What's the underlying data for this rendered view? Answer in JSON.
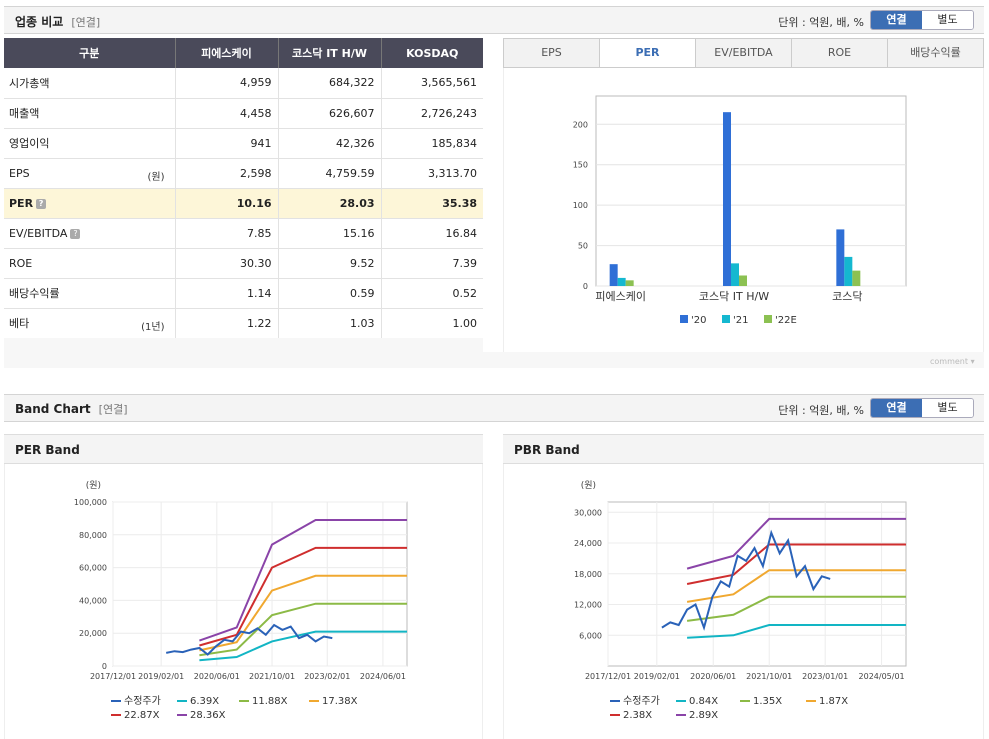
{
  "comparison": {
    "title": "업종 비교",
    "subtitle": "[연결]",
    "unit": "단위 : 억원, 배, %",
    "toggle": [
      "연결",
      "별도"
    ],
    "headers": [
      "구분",
      "피에스케이",
      "코스닥 IT H/W",
      "KOSDAQ"
    ],
    "rows": [
      {
        "label": "시가총액",
        "note": "",
        "values": [
          "4,959",
          "684,322",
          "3,565,561"
        ]
      },
      {
        "label": "매출액",
        "note": "",
        "values": [
          "4,458",
          "626,607",
          "2,726,243"
        ]
      },
      {
        "label": "영업이익",
        "note": "",
        "values": [
          "941",
          "42,326",
          "185,834"
        ]
      },
      {
        "label": "EPS",
        "note": "(원)",
        "values": [
          "2,598",
          "4,759.59",
          "3,313.70"
        ]
      },
      {
        "label": "PER",
        "note": "",
        "values": [
          "10.16",
          "28.03",
          "35.38"
        ]
      },
      {
        "label": "EV/EBITDA",
        "note": "",
        "values": [
          "7.85",
          "15.16",
          "16.84"
        ]
      },
      {
        "label": "ROE",
        "note": "",
        "values": [
          "30.30",
          "9.52",
          "7.39"
        ]
      },
      {
        "label": "배당수익률",
        "note": "",
        "values": [
          "1.14",
          "0.59",
          "0.52"
        ]
      },
      {
        "label": "베타",
        "note": "(1년)",
        "values": [
          "1.22",
          "1.03",
          "1.00"
        ]
      }
    ],
    "tabs": [
      "EPS",
      "PER",
      "EV/EBITDA",
      "ROE",
      "배당수익률"
    ],
    "active_tab": "PER",
    "comment": "comment"
  },
  "band": {
    "title": "Band Chart",
    "subtitle": "[연결]",
    "unit": "단위 : 억원, 배, %",
    "toggle": [
      "연결",
      "별도"
    ],
    "per_title": "PER Band",
    "pbr_title": "PBR Band"
  },
  "colors": {
    "bar20": "#2f6fd6",
    "bar21": "#15b8d0",
    "bar22": "#8cc152",
    "price": "#2a62b8",
    "b1": "#12b5c4",
    "b2": "#8cba46",
    "b3": "#f0a830",
    "b4": "#cf2e2e",
    "b5": "#8a44a8"
  },
  "chart_data": [
    {
      "type": "bar",
      "title": "PER",
      "categories": [
        "피에스케이",
        "코스닥 IT H/W",
        "코스닥"
      ],
      "series": [
        {
          "name": "'20",
          "values": [
            27,
            215,
            70
          ]
        },
        {
          "name": "'21",
          "values": [
            10,
            28,
            36
          ]
        },
        {
          "name": "'22E",
          "values": [
            7,
            13,
            19
          ]
        }
      ],
      "ylim": [
        0,
        235
      ],
      "yticks": [
        0,
        50,
        100,
        150,
        200
      ]
    },
    {
      "type": "line",
      "title": "PER Band",
      "ylabel": "(원)",
      "ylim": [
        0,
        100000
      ],
      "yticks": [
        0,
        20000,
        40000,
        60000,
        80000,
        100000
      ],
      "ytick_labels": [
        "0",
        "20,000",
        "40,000",
        "60,000",
        "80,000",
        "100,000"
      ],
      "xlim": [
        2017.92,
        2025.0
      ],
      "xticks": [
        2017.92,
        2019.08,
        2020.42,
        2021.75,
        2023.08,
        2024.42
      ],
      "xtick_labels": [
        "2017/12/01",
        "2019/02/01",
        "2020/06/01",
        "2021/10/01",
        "2023/02/01",
        "2024/06/01"
      ],
      "series": [
        {
          "name": "수정주가",
          "x": [
            2019.2,
            2019.4,
            2019.6,
            2019.8,
            2020.0,
            2020.2,
            2020.4,
            2020.6,
            2020.8,
            2021.0,
            2021.2,
            2021.4,
            2021.6,
            2021.8,
            2022.0,
            2022.2,
            2022.4,
            2022.6,
            2022.8,
            2023.0,
            2023.2
          ],
          "y": [
            8000,
            9000,
            8500,
            10000,
            11000,
            7000,
            12000,
            16000,
            15000,
            21000,
            20000,
            23000,
            19000,
            25000,
            22000,
            24000,
            17000,
            19000,
            15000,
            18000,
            17000
          ]
        },
        {
          "name": "6.39X",
          "x": [
            2020.0,
            2020.9,
            2021.75,
            2022.8,
            2025.0
          ],
          "y": [
            3500,
            5500,
            15000,
            21000,
            21000
          ]
        },
        {
          "name": "11.88X",
          "x": [
            2020.0,
            2020.9,
            2021.75,
            2022.8,
            2025.0
          ],
          "y": [
            6500,
            10000,
            31000,
            38000,
            38000
          ]
        },
        {
          "name": "17.38X",
          "x": [
            2020.0,
            2020.9,
            2021.75,
            2022.8,
            2025.0
          ],
          "y": [
            9500,
            14500,
            46000,
            55000,
            55000
          ]
        },
        {
          "name": "22.87X",
          "x": [
            2020.0,
            2020.9,
            2021.75,
            2022.8,
            2025.0
          ],
          "y": [
            12500,
            19000,
            60000,
            72000,
            72000
          ]
        },
        {
          "name": "28.36X",
          "x": [
            2020.0,
            2020.9,
            2021.75,
            2022.8,
            2025.0
          ],
          "y": [
            15500,
            23500,
            74000,
            89000,
            89000
          ]
        }
      ]
    },
    {
      "type": "line",
      "title": "PBR Band",
      "ylabel": "(원)",
      "ylim": [
        0,
        32000
      ],
      "yticks": [
        6000,
        12000,
        18000,
        24000,
        30000
      ],
      "ytick_labels": [
        "6,000",
        "12,000",
        "18,000",
        "24,000",
        "30,000"
      ],
      "xlim": [
        2017.92,
        2025.0
      ],
      "xticks": [
        2017.92,
        2019.08,
        2020.42,
        2021.75,
        2023.08,
        2024.42
      ],
      "xtick_labels": [
        "2017/12/01",
        "2019/02/01",
        "2020/06/01",
        "2021/10/01",
        "2023/01/01",
        "2024/05/01"
      ],
      "series": [
        {
          "name": "수정주가",
          "x": [
            2019.2,
            2019.4,
            2019.6,
            2019.8,
            2020.0,
            2020.2,
            2020.4,
            2020.6,
            2020.8,
            2021.0,
            2021.2,
            2021.4,
            2021.6,
            2021.8,
            2022.0,
            2022.2,
            2022.4,
            2022.6,
            2022.8,
            2023.0,
            2023.2
          ],
          "y": [
            7500,
            8500,
            8000,
            11000,
            12000,
            7500,
            13500,
            16500,
            15500,
            21500,
            20500,
            23000,
            19500,
            26000,
            22000,
            24500,
            17500,
            19500,
            15000,
            17500,
            17000
          ]
        },
        {
          "name": "0.84X",
          "x": [
            2019.8,
            2020.9,
            2021.75,
            2025.0
          ],
          "y": [
            5500,
            6000,
            8000,
            8000
          ]
        },
        {
          "name": "1.35X",
          "x": [
            2019.8,
            2020.9,
            2021.75,
            2025.0
          ],
          "y": [
            8800,
            10000,
            13500,
            13500
          ]
        },
        {
          "name": "1.87X",
          "x": [
            2019.8,
            2020.9,
            2021.75,
            2025.0
          ],
          "y": [
            12500,
            14000,
            18700,
            18700
          ]
        },
        {
          "name": "2.38X",
          "x": [
            2019.8,
            2020.9,
            2021.75,
            2025.0
          ],
          "y": [
            16000,
            17800,
            23700,
            23700
          ]
        },
        {
          "name": "2.89X",
          "x": [
            2019.8,
            2020.9,
            2021.75,
            2025.0
          ],
          "y": [
            19000,
            21500,
            28700,
            28700
          ]
        }
      ]
    }
  ]
}
